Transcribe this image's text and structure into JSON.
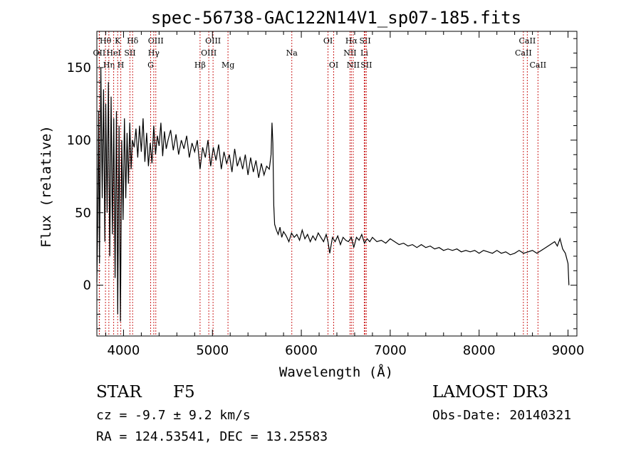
{
  "chart_data": {
    "type": "line",
    "title": "spec-56738-GAC122N14V1_sp07-185.fits",
    "xlabel": "Wavelength (Å)",
    "ylabel": "Flux (relative)",
    "xlim": [
      3700,
      9100
    ],
    "ylim": [
      -35,
      175
    ],
    "xticks": [
      4000,
      5000,
      6000,
      7000,
      8000,
      9000
    ],
    "xtick_labels": [
      "4000",
      "5000",
      "6000",
      "7000",
      "8000",
      "9000"
    ],
    "yticks": [
      0,
      50,
      100,
      150
    ],
    "ytick_labels": [
      "0",
      "50",
      "100",
      "150"
    ],
    "grid": false,
    "series": [
      {
        "name": "flux",
        "x": [
          3700,
          3710,
          3720,
          3730,
          3745,
          3760,
          3775,
          3790,
          3800,
          3815,
          3830,
          3845,
          3860,
          3875,
          3890,
          3905,
          3920,
          3935,
          3950,
          3965,
          3980,
          3995,
          4010,
          4025,
          4040,
          4055,
          4070,
          4085,
          4100,
          4120,
          4140,
          4160,
          4180,
          4200,
          4220,
          4240,
          4260,
          4280,
          4300,
          4320,
          4340,
          4360,
          4380,
          4400,
          4420,
          4440,
          4460,
          4480,
          4500,
          4530,
          4560,
          4590,
          4620,
          4650,
          4680,
          4710,
          4740,
          4770,
          4800,
          4830,
          4861,
          4890,
          4920,
          4950,
          4980,
          5010,
          5040,
          5070,
          5100,
          5130,
          5160,
          5190,
          5220,
          5250,
          5280,
          5310,
          5340,
          5370,
          5400,
          5430,
          5460,
          5490,
          5520,
          5550,
          5580,
          5610,
          5640,
          5660,
          5670,
          5680,
          5690,
          5700,
          5720,
          5740,
          5760,
          5780,
          5800,
          5830,
          5860,
          5890,
          5920,
          5950,
          5980,
          6010,
          6040,
          6070,
          6100,
          6130,
          6160,
          6190,
          6220,
          6250,
          6280,
          6300,
          6320,
          6350,
          6380,
          6410,
          6440,
          6470,
          6500,
          6530,
          6563,
          6590,
          6620,
          6650,
          6680,
          6710,
          6740,
          6770,
          6800,
          6850,
          6900,
          6950,
          7000,
          7050,
          7100,
          7150,
          7200,
          7250,
          7300,
          7350,
          7400,
          7450,
          7500,
          7550,
          7600,
          7650,
          7700,
          7750,
          7800,
          7850,
          7900,
          7950,
          8000,
          8050,
          8100,
          8150,
          8200,
          8250,
          8300,
          8350,
          8400,
          8450,
          8500,
          8550,
          8600,
          8650,
          8700,
          8750,
          8800,
          8850,
          8880,
          8910,
          8940,
          8970,
          9000,
          9010
        ],
        "values": [
          2,
          45,
          120,
          15,
          150,
          60,
          135,
          30,
          125,
          50,
          140,
          20,
          130,
          35,
          115,
          5,
          120,
          -20,
          110,
          -25,
          100,
          45,
          115,
          60,
          105,
          70,
          112,
          80,
          100,
          95,
          108,
          88,
          110,
          92,
          115,
          85,
          105,
          82,
          98,
          84,
          110,
          90,
          103,
          96,
          112,
          89,
          106,
          94,
          100,
          107,
          93,
          104,
          90,
          100,
          94,
          103,
          88,
          98,
          92,
          100,
          80,
          95,
          88,
          100,
          82,
          95,
          86,
          97,
          80,
          92,
          84,
          90,
          78,
          94,
          82,
          88,
          80,
          90,
          76,
          88,
          78,
          86,
          74,
          84,
          76,
          82,
          80,
          90,
          112,
          98,
          55,
          42,
          38,
          35,
          40,
          33,
          37,
          34,
          30,
          36,
          33,
          35,
          31,
          38,
          32,
          35,
          30,
          34,
          31,
          36,
          33,
          30,
          35,
          30,
          22,
          33,
          30,
          34,
          28,
          33,
          31,
          30,
          33,
          26,
          33,
          31,
          35,
          29,
          32,
          30,
          33,
          30,
          31,
          29,
          32,
          30,
          28,
          29,
          27,
          28,
          26,
          28,
          26,
          27,
          25,
          26,
          24,
          25,
          24,
          25,
          23,
          24,
          23,
          24,
          22,
          24,
          23,
          22,
          24,
          22,
          23,
          21,
          22,
          24,
          22,
          23,
          24,
          22,
          24,
          26,
          28,
          30,
          27,
          32,
          25,
          22,
          15,
          0
        ]
      }
    ],
    "line_groups": [
      {
        "name": "OII",
        "row": 2,
        "wavelengths": [
          3727,
          3729
        ]
      },
      {
        "name": "Hθ",
        "row": 1,
        "wavelengths": [
          3797
        ]
      },
      {
        "name": "Hη",
        "row": 3,
        "wavelengths": [
          3835
        ]
      },
      {
        "name": "HeI",
        "row": 2,
        "wavelengths": [
          3889
        ]
      },
      {
        "name": "K",
        "row": 1,
        "wavelengths": [
          3934
        ]
      },
      {
        "name": "H",
        "row": 3,
        "wavelengths": [
          3969
        ]
      },
      {
        "name": "SII",
        "row": 2,
        "wavelengths": [
          4072
        ]
      },
      {
        "name": "Hδ",
        "row": 1,
        "wavelengths": [
          4102
        ]
      },
      {
        "name": "OIII",
        "row": 1,
        "wavelengths": [
          4363
        ]
      },
      {
        "name": "Hγ",
        "row": 2,
        "wavelengths": [
          4340
        ]
      },
      {
        "name": "G",
        "row": 3,
        "wavelengths": [
          4305
        ]
      },
      {
        "name": "Hβ",
        "row": 3,
        "wavelengths": [
          4861
        ]
      },
      {
        "name": "OIII",
        "row": 2,
        "wavelengths": [
          4959
        ]
      },
      {
        "name": "OIII",
        "row": 1,
        "wavelengths": [
          5007
        ]
      },
      {
        "name": "Mg",
        "row": 3,
        "wavelengths": [
          5175
        ]
      },
      {
        "name": "Na",
        "row": 2,
        "wavelengths": [
          5893
        ]
      },
      {
        "name": "OI",
        "row": 1,
        "wavelengths": [
          6300
        ]
      },
      {
        "name": "OI",
        "row": 3,
        "wavelengths": [
          6364
        ]
      },
      {
        "name": "NII",
        "row": 2,
        "wavelengths": [
          6548
        ]
      },
      {
        "name": "Hα",
        "row": 1,
        "wavelengths": [
          6563
        ]
      },
      {
        "name": "NII",
        "row": 3,
        "wavelengths": [
          6584
        ]
      },
      {
        "name": "SII",
        "row": 1,
        "wavelengths": [
          6717
        ]
      },
      {
        "name": "Li",
        "row": 2,
        "wavelengths": [
          6708
        ]
      },
      {
        "name": "SII",
        "row": 3,
        "wavelengths": [
          6731
        ]
      },
      {
        "name": "CaII",
        "row": 1,
        "wavelengths": [
          8542
        ]
      },
      {
        "name": "CaII",
        "row": 2,
        "wavelengths": [
          8498
        ]
      },
      {
        "name": "CaII",
        "row": 3,
        "wavelengths": [
          8662
        ]
      }
    ]
  },
  "info": {
    "class": "STAR",
    "subclass": "F5",
    "survey": "LAMOST DR3",
    "cz": "cz = -9.7 ± 9.2 km/s",
    "obs_date": "Obs-Date: 20140321",
    "coords": "RA = 124.53541, DEC =  13.25583"
  },
  "colors": {
    "line_marker": "#cc2222",
    "spectrum": "#000000"
  }
}
